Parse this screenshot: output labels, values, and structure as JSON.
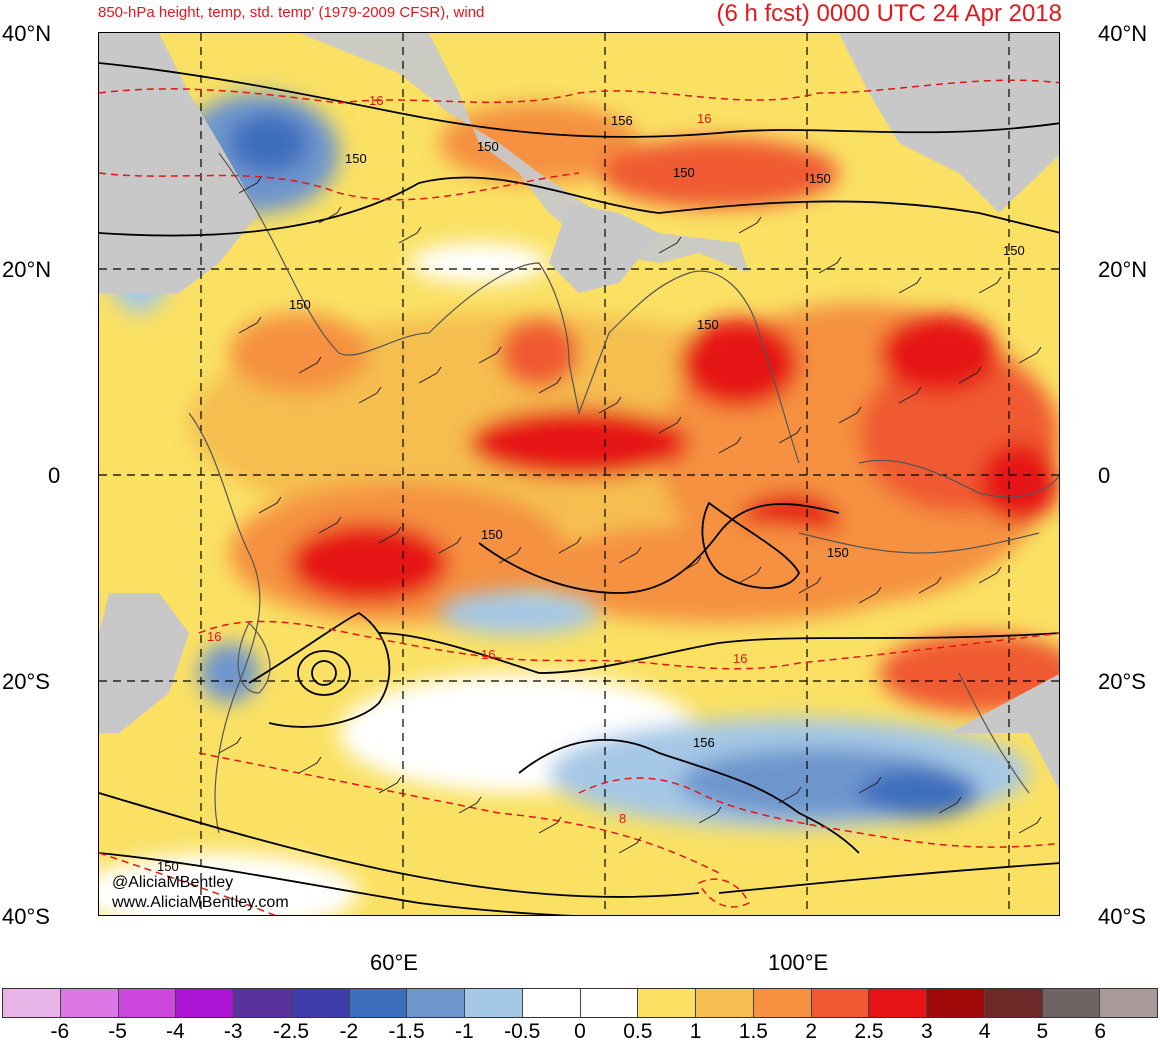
{
  "title": {
    "left": "850-hPa height, temp, std. temp' (1979-2009 CFSR), wind",
    "right": "(6 h fcst) 0000 UTC 24 Apr 2018"
  },
  "map": {
    "lat_labels": [
      "40°N",
      "20°N",
      "0",
      "20°S",
      "40°S"
    ],
    "lon_labels": [
      "60°E",
      "100°E"
    ],
    "height_contour_labels": [
      "150",
      "150",
      "150",
      "156",
      "150",
      "150",
      "150",
      "150",
      "150",
      "150",
      "156",
      "150"
    ],
    "temp_contour_labels": [
      "16",
      "16",
      "16",
      "16",
      "16",
      "8"
    ],
    "credit_line1": "@AliciaMBentley",
    "credit_line2": "www.AliciaMBentley.com"
  },
  "colorbar": {
    "colors": [
      "#e8b4e8",
      "#dc78e6",
      "#cd48dc",
      "#aa14d2",
      "#5a32a0",
      "#3c3caa",
      "#3c6ebe",
      "#6e96cd",
      "#a5c8e6",
      "#ffffff",
      "#ffffff",
      "#fae164",
      "#f5be50",
      "#f59141",
      "#f05a32",
      "#e61414",
      "#a00a0a",
      "#6e2828",
      "#6e6464",
      "#aa9b9b"
    ],
    "labels": [
      "-6",
      "-5",
      "-4",
      "-3",
      "-2.5",
      "-2",
      "-1.5",
      "-1",
      "-0.5",
      "0",
      "0.5",
      "1",
      "1.5",
      "2",
      "2.5",
      "3",
      "4",
      "5",
      "6"
    ]
  }
}
